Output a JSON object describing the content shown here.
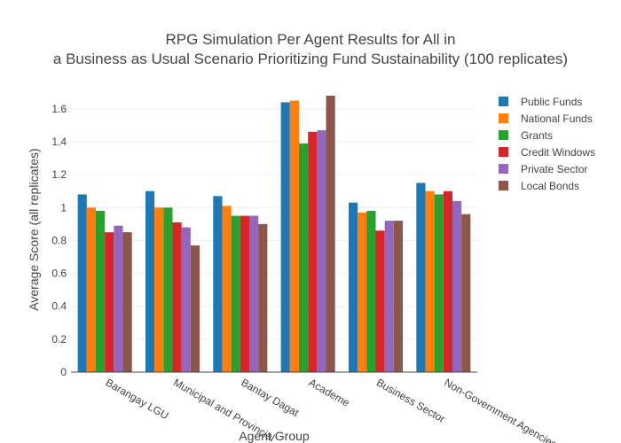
{
  "chart_data": {
    "type": "bar",
    "title_lines": [
      "RPG Simulation Per Agent Results for All in",
      "a Business as Usual Scenario Prioritizing Fund Sustainability (100 replicates)"
    ],
    "xlabel": "Agent Group",
    "ylabel": "Average Score (all replicates)",
    "ylim": [
      0,
      1.75
    ],
    "yticks": [
      0,
      0.2,
      0.4,
      0.6,
      0.8,
      1,
      1.2,
      1.4,
      1.6
    ],
    "ytick_labels": [
      "0",
      "0.2",
      "0.4",
      "0.6",
      "0.8",
      "1",
      "1.2",
      "1.4",
      "1.6"
    ],
    "grid": true,
    "legend_position": "top-right",
    "categories": [
      "Barangay LGU",
      "Municipal and Provincial",
      "Bantay Dagat",
      "Academe",
      "Business Sector",
      "Non-Government Agencies"
    ],
    "series": [
      {
        "name": "Public Funds",
        "color": "#1f77b4",
        "values": [
          1.08,
          1.1,
          1.07,
          1.64,
          1.03,
          1.15
        ]
      },
      {
        "name": "National Funds",
        "color": "#ff7f0e",
        "values": [
          1.0,
          1.0,
          1.01,
          1.65,
          0.97,
          1.1
        ]
      },
      {
        "name": "Grants",
        "color": "#2ca02c",
        "values": [
          0.98,
          1.0,
          0.95,
          1.39,
          0.98,
          1.08
        ]
      },
      {
        "name": "Credit Windows",
        "color": "#d62728",
        "values": [
          0.85,
          0.91,
          0.95,
          1.46,
          0.86,
          1.1
        ]
      },
      {
        "name": "Private Sector",
        "color": "#9467bd",
        "values": [
          0.89,
          0.88,
          0.95,
          1.47,
          0.92,
          1.04
        ]
      },
      {
        "name": "Local Bonds",
        "color": "#8c564b",
        "values": [
          0.85,
          0.77,
          0.9,
          1.68,
          0.92,
          0.96
        ]
      }
    ]
  }
}
